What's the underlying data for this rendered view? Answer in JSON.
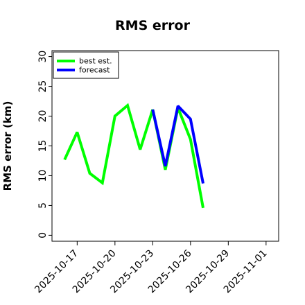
{
  "chart_data": {
    "type": "line",
    "title": "RMS error",
    "xlabel": "",
    "ylabel": "RMS error (km)",
    "x_type": "date",
    "xlim": [
      "2025-10-15",
      "2025-11-02"
    ],
    "ylim": [
      -1,
      31
    ],
    "yticks": [
      0,
      5,
      10,
      15,
      20,
      25,
      30
    ],
    "xticks": [
      {
        "label": "2025-10-17",
        "date": "2025-10-17",
        "color": "#000000"
      },
      {
        "label": "2025-10-20",
        "date": "2025-10-20",
        "color": "#000000"
      },
      {
        "label": "2025-10-23",
        "date": "2025-10-23",
        "color": "#2e8b2e"
      },
      {
        "label": "2025-10-26",
        "date": "2025-10-26",
        "color": "#000000"
      },
      {
        "label": "2025-10-29",
        "date": "2025-10-29",
        "color": "#000000"
      },
      {
        "label": "2025-11-01",
        "date": "2025-11-01",
        "color": "#000000"
      }
    ],
    "grid": false,
    "legend_position": "top-left",
    "series": [
      {
        "name": "best est.",
        "color": "#00ff00",
        "points": [
          [
            "2025-10-16",
            12.7
          ],
          [
            "2025-10-17",
            17.3
          ],
          [
            "2025-10-18",
            10.4
          ],
          [
            "2025-10-19",
            8.8
          ],
          [
            "2025-10-20",
            20.0
          ],
          [
            "2025-10-21",
            21.8
          ],
          [
            "2025-10-22",
            14.4
          ],
          [
            "2025-10-23",
            21.1
          ],
          [
            "2025-10-24",
            11.0
          ],
          [
            "2025-10-25",
            21.4
          ],
          [
            "2025-10-26",
            16.1
          ],
          [
            "2025-10-27",
            4.6
          ]
        ]
      },
      {
        "name": "forecast",
        "color": "#0000ff",
        "points": [
          [
            "2025-10-23",
            21.1
          ],
          [
            "2025-10-24",
            11.6
          ],
          [
            "2025-10-25",
            21.7
          ],
          [
            "2025-10-26",
            19.5
          ],
          [
            "2025-10-27",
            8.7
          ]
        ]
      }
    ]
  }
}
